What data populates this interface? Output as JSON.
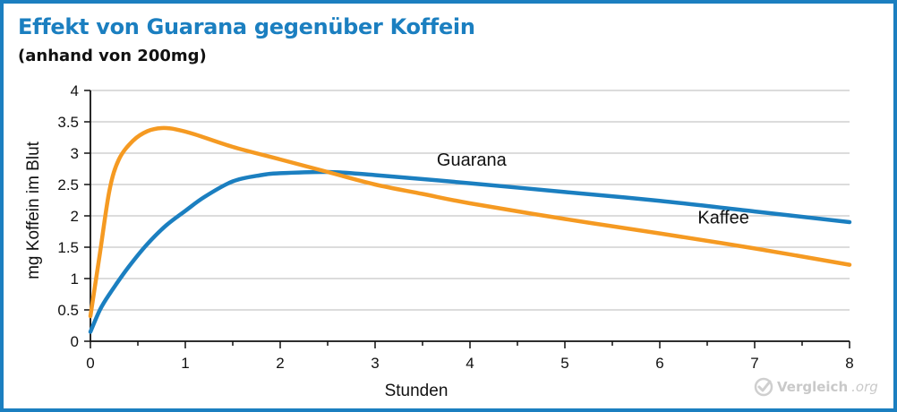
{
  "header": {
    "title": "Effekt von Guarana gegenüber Koffein",
    "subtitle": "(anhand von 200mg)"
  },
  "watermark": {
    "brand": "Vergleich",
    "tld": ".org",
    "icon": "check-circle-icon"
  },
  "colors": {
    "frame": "#1b7fc0",
    "title": "#1b7fc0",
    "guarana": "#1b7fc0",
    "kaffee": "#f59a22",
    "grid": "#c8c8c8",
    "axis": "#111111"
  },
  "chart_data": {
    "type": "line",
    "xlabel": "Stunden",
    "ylabel": "mg Koffein im Blut",
    "xlim": [
      0,
      8
    ],
    "ylim": [
      0,
      4
    ],
    "xticks": [
      "0",
      "1",
      "2",
      "3",
      "4",
      "5",
      "6",
      "7",
      "8"
    ],
    "yticks": [
      "0",
      "0.5",
      "1",
      "1.5",
      "2",
      "2.5",
      "3",
      "3.5",
      "4"
    ],
    "grid": "horizontal",
    "series": [
      {
        "name": "Guarana",
        "color": "#1b7fc0",
        "x": [
          0,
          0.1,
          0.2,
          0.4,
          0.6,
          0.8,
          1.0,
          1.2,
          1.5,
          1.8,
          2.0,
          2.5,
          3.0,
          4.0,
          5.0,
          6.0,
          7.0,
          8.0
        ],
        "y": [
          0.15,
          0.5,
          0.75,
          1.18,
          1.55,
          1.85,
          2.08,
          2.3,
          2.55,
          2.65,
          2.68,
          2.7,
          2.65,
          2.52,
          2.38,
          2.24,
          2.07,
          1.9
        ]
      },
      {
        "name": "Kaffee",
        "color": "#f59a22",
        "x": [
          0,
          0.1,
          0.2,
          0.3,
          0.45,
          0.6,
          0.75,
          0.9,
          1.1,
          1.5,
          2.0,
          2.5,
          3.0,
          3.5,
          4.0,
          5.0,
          6.0,
          7.0,
          8.0
        ],
        "y": [
          0.4,
          1.4,
          2.4,
          2.9,
          3.2,
          3.35,
          3.4,
          3.38,
          3.3,
          3.1,
          2.9,
          2.7,
          2.5,
          2.35,
          2.2,
          1.95,
          1.72,
          1.48,
          1.22
        ]
      }
    ]
  }
}
